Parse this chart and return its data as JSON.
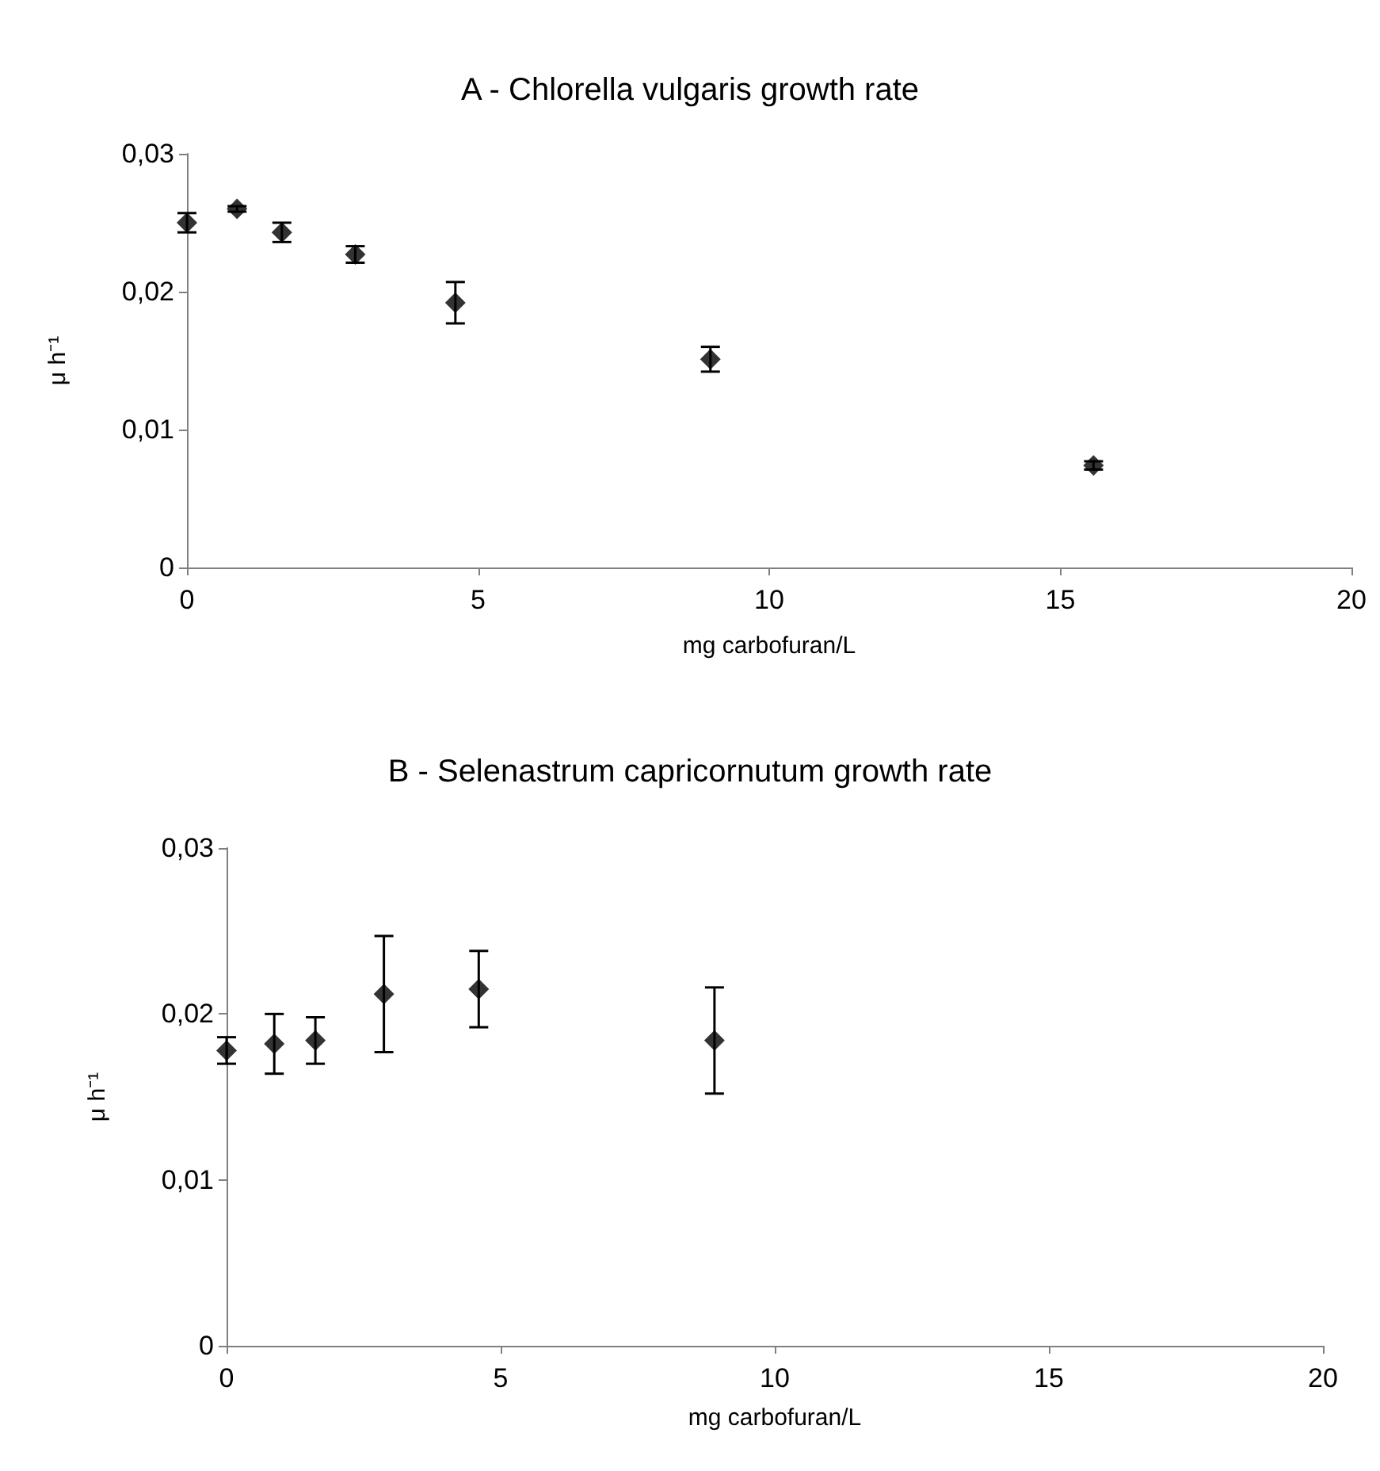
{
  "chart_data": [
    {
      "type": "scatter",
      "title": "A - Chlorella vulgaris growth rate",
      "xlabel": "mg carbofuran/L",
      "ylabel": "μ h⁻¹",
      "color": "#000000",
      "marker": "diamond",
      "x": [
        0,
        0.86,
        1.63,
        2.89,
        4.61,
        8.99,
        15.57
      ],
      "values": [
        0.025,
        0.026,
        0.0243,
        0.0227,
        0.0192,
        0.0151,
        0.0074
      ],
      "errors": [
        0.0007,
        0.0002,
        0.0007,
        0.0006,
        0.0015,
        0.0009,
        0.0003
      ],
      "xlim": [
        0,
        20
      ],
      "xticks": [
        0,
        5,
        10,
        15,
        20
      ],
      "ylim": [
        0,
        0.03
      ],
      "yticks": [
        {
          "value": 0,
          "label": "0"
        },
        {
          "value": 0.01,
          "label": "0,01"
        },
        {
          "value": 0.02,
          "label": "0,02"
        },
        {
          "value": 0.03,
          "label": "0,03"
        }
      ]
    },
    {
      "type": "scatter",
      "title": "B - Selenastrum capricornutum growth rate",
      "xlabel": "mg carbofuran/L",
      "ylabel": "μ h⁻¹",
      "color": "#000000",
      "marker": "diamond",
      "x": [
        0,
        0.87,
        1.62,
        2.87,
        4.6,
        8.9
      ],
      "values": [
        0.0178,
        0.0182,
        0.0184,
        0.0212,
        0.0215,
        0.0184
      ],
      "errors": [
        0.0008,
        0.0018,
        0.0014,
        0.0035,
        0.0023,
        0.0032
      ],
      "xlim": [
        0,
        20
      ],
      "xticks": [
        0,
        5,
        10,
        15,
        20
      ],
      "ylim": [
        0,
        0.03
      ],
      "yticks": [
        {
          "value": 0,
          "label": "0"
        },
        {
          "value": 0.01,
          "label": "0,01"
        },
        {
          "value": 0.02,
          "label": "0,02"
        },
        {
          "value": 0.03,
          "label": "0,03"
        }
      ]
    }
  ]
}
